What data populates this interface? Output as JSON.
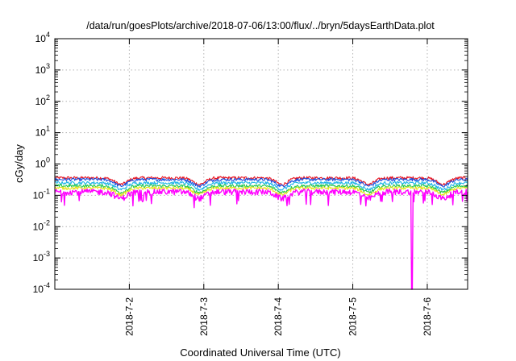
{
  "chart_data": {
    "type": "line",
    "title": "/data/run/goesPlots/archive/2018-07-06/13:00/flux/../bryn/5daysEarthData.plot",
    "xlabel": "Coordinated Universal Time (UTC)",
    "ylabel": "cGy/day",
    "y_scale": "log",
    "ylim": [
      0.0001,
      10000
    ],
    "y_ticks": [
      {
        "base": "10",
        "exp": "-4",
        "value": 0.0001
      },
      {
        "base": "10",
        "exp": "-3",
        "value": 0.001
      },
      {
        "base": "10",
        "exp": "-2",
        "value": 0.01
      },
      {
        "base": "10",
        "exp": "-1",
        "value": 0.1
      },
      {
        "base": "10",
        "exp": "0",
        "value": 1
      },
      {
        "base": "10",
        "exp": "1",
        "value": 10
      },
      {
        "base": "10",
        "exp": "2",
        "value": 100
      },
      {
        "base": "10",
        "exp": "3",
        "value": 1000
      },
      {
        "base": "10",
        "exp": "4",
        "value": 10000
      }
    ],
    "xlim": [
      "2018-07-01T00:00",
      "2018-07-06T13:00"
    ],
    "x_ticks": [
      {
        "label": "2018-7-2",
        "date": "2018-07-02"
      },
      {
        "label": "2018-7-3",
        "date": "2018-07-03"
      },
      {
        "label": "2018-7-4",
        "date": "2018-07-04"
      },
      {
        "label": "2018-7-5",
        "date": "2018-07-05"
      },
      {
        "label": "2018-7-6",
        "date": "2018-07-06"
      }
    ],
    "grid": true,
    "series": [
      {
        "color": "#e8101c",
        "level": 0.36
      },
      {
        "color": "#1a4fe0",
        "level": 0.32
      },
      {
        "color": "#1fb4e8",
        "level": 0.25
      },
      {
        "color": "#22c84a",
        "level": 0.2
      },
      {
        "color": "#e8e21a",
        "level": 0.17
      },
      {
        "color": "#ff00ff",
        "level": 0.13,
        "dropout": {
          "time": "2018-07-05T19:00",
          "value": 0.0001
        }
      }
    ]
  }
}
